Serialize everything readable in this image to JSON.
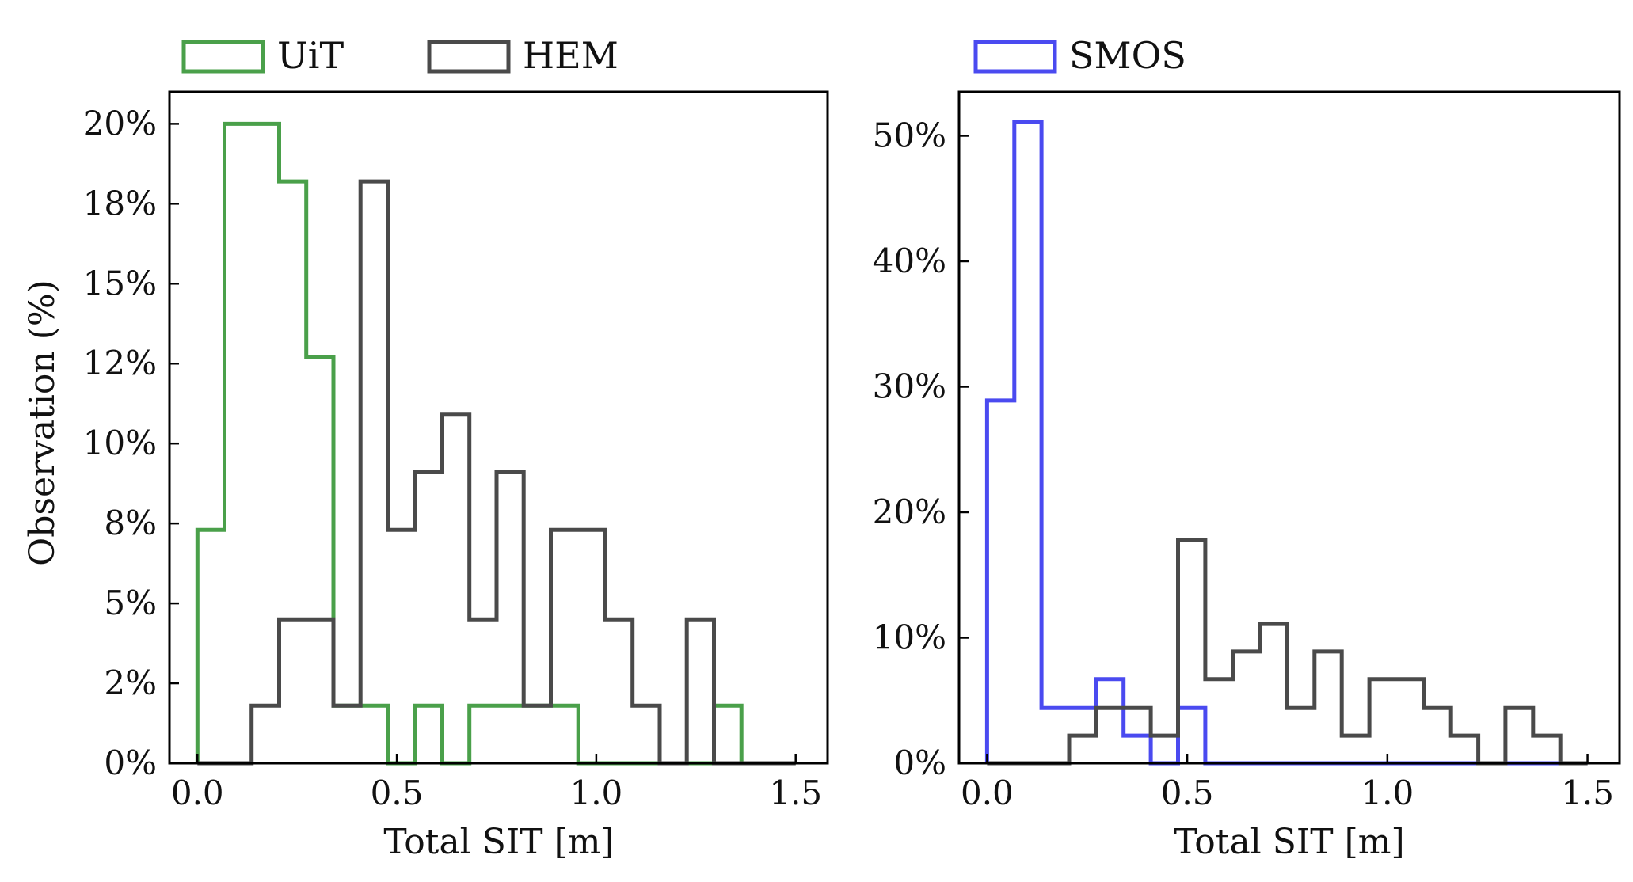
{
  "chart_data": [
    {
      "type": "histogram",
      "xlabel": "Total SIT [m]",
      "ylabel": "Observation (%)",
      "xlim": [
        -0.07,
        1.58
      ],
      "ylim": [
        0,
        21
      ],
      "x_ticks": [
        0.0,
        0.5,
        1.0,
        1.5
      ],
      "x_tick_labels": [
        "0.0",
        "0.5",
        "1.0",
        "1.5"
      ],
      "y_ticks": [
        0,
        2.5,
        5,
        7.5,
        10,
        12.5,
        15,
        17.5,
        20
      ],
      "y_tick_labels": [
        "0%",
        "2%",
        "5%",
        "8%",
        "10%",
        "12%",
        "15%",
        "18%",
        "20%"
      ],
      "bin_edges": [
        0.0,
        0.068,
        0.136,
        0.205,
        0.273,
        0.341,
        0.409,
        0.477,
        0.545,
        0.614,
        0.682,
        0.75,
        0.818,
        0.886,
        0.955,
        1.023,
        1.091,
        1.159,
        1.227,
        1.295,
        1.364,
        1.432,
        1.5
      ],
      "legend": "top-left, outside",
      "series": [
        {
          "name": "UiT",
          "color": "#4aa04a",
          "values": [
            7.3,
            20.0,
            20.0,
            18.2,
            12.7,
            1.8,
            1.8,
            0.0,
            1.8,
            0.0,
            1.8,
            1.8,
            1.8,
            1.8,
            0.0,
            0.0,
            0.0,
            0.0,
            0.0,
            1.8,
            0.0,
            0.0
          ]
        },
        {
          "name": "HEM",
          "color": "#4a4a4a",
          "values": [
            0.0,
            0.0,
            1.8,
            4.5,
            4.5,
            1.8,
            18.2,
            7.3,
            9.1,
            10.9,
            4.5,
            9.1,
            1.8,
            7.3,
            7.3,
            4.5,
            1.8,
            0.0,
            4.5,
            0.0,
            0.0,
            0.0
          ]
        }
      ]
    },
    {
      "type": "histogram",
      "xlabel": "Total SIT [m]",
      "ylabel": "",
      "xlim": [
        -0.07,
        1.58
      ],
      "ylim": [
        0,
        53.5
      ],
      "x_ticks": [
        0.0,
        0.5,
        1.0,
        1.5
      ],
      "x_tick_labels": [
        "0.0",
        "0.5",
        "1.0",
        "1.5"
      ],
      "y_ticks": [
        0,
        10,
        20,
        30,
        40,
        50
      ],
      "y_tick_labels": [
        "0%",
        "10%",
        "20%",
        "30%",
        "40%",
        "50%"
      ],
      "bin_edges": [
        0.0,
        0.068,
        0.136,
        0.205,
        0.273,
        0.341,
        0.409,
        0.477,
        0.545,
        0.614,
        0.682,
        0.75,
        0.818,
        0.886,
        0.955,
        1.023,
        1.091,
        1.159,
        1.227,
        1.295,
        1.364,
        1.432,
        1.5
      ],
      "legend": "top-left, outside",
      "series": [
        {
          "name": "SMOS",
          "color": "#4a4af0",
          "values": [
            28.9,
            51.1,
            4.4,
            4.4,
            6.7,
            2.2,
            0.0,
            4.4,
            0.0,
            0.0,
            0.0,
            0.0,
            0.0,
            0.0,
            0.0,
            0.0,
            0.0,
            0.0,
            0.0,
            0.0,
            0.0,
            0.0
          ]
        },
        {
          "name": "",
          "color": "#4a4a4a",
          "values": [
            0.0,
            0.0,
            0.0,
            2.2,
            4.4,
            4.4,
            2.2,
            17.8,
            6.7,
            8.9,
            11.1,
            4.4,
            8.9,
            2.2,
            6.7,
            6.7,
            4.4,
            2.2,
            0.0,
            4.4,
            2.2,
            0.0
          ]
        }
      ]
    }
  ]
}
